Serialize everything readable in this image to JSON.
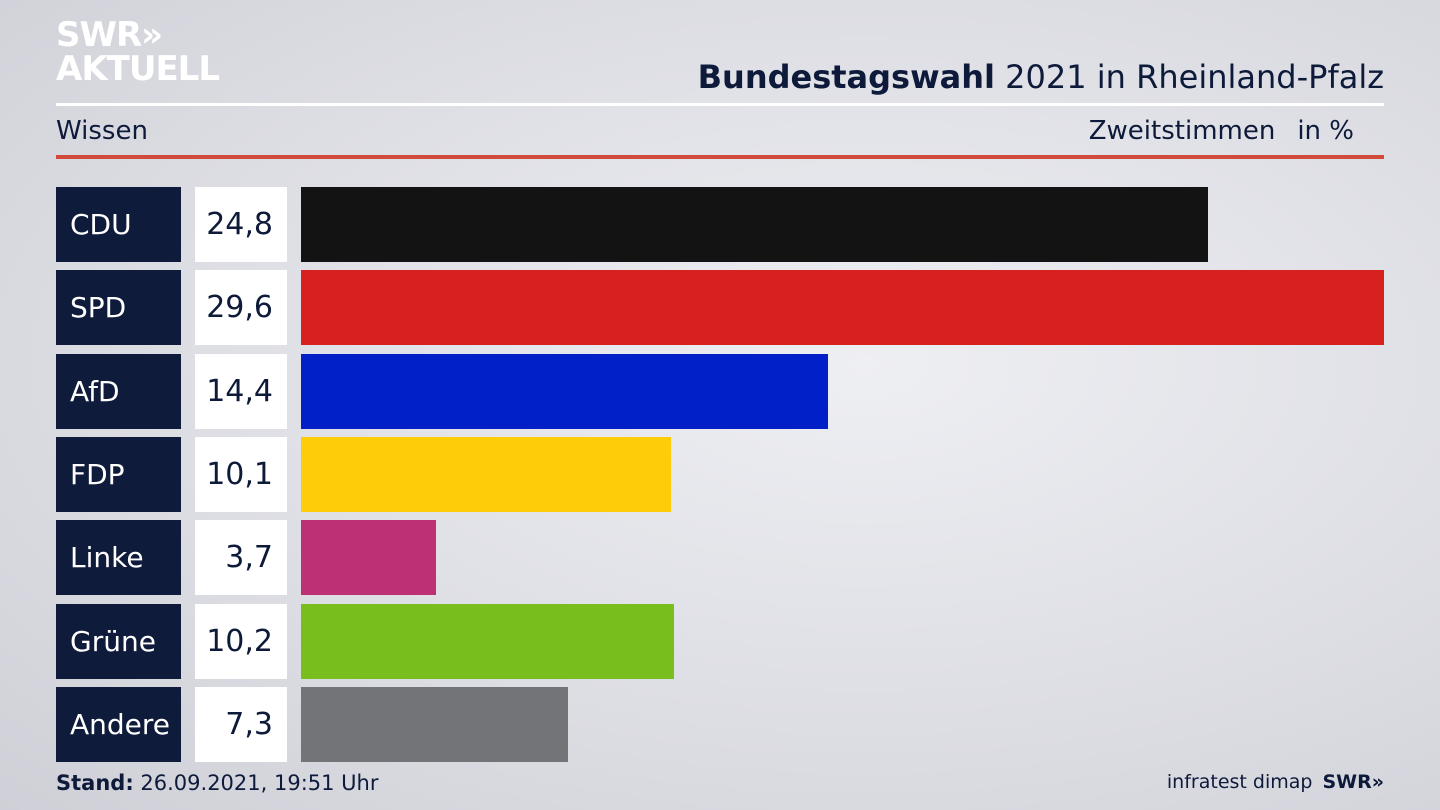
{
  "logo": {
    "line1": "SWR»",
    "line2": "AKTUELL"
  },
  "header": {
    "title_bold": "Bundestagswahl",
    "title_rest": " 2021 in Rheinland-Pfalz",
    "subtitle_left": "Wissen",
    "subtitle_right": "Zweitstimmen",
    "unit": "in %"
  },
  "footer": {
    "stand_label": "Stand:",
    "stand_value": " 26.09.2021, 19:51 Uhr",
    "source": "infratest dimap",
    "brand": "SWR»"
  },
  "chart_data": {
    "type": "bar",
    "orientation": "horizontal",
    "categories": [
      "CDU",
      "SPD",
      "AfD",
      "FDP",
      "Linke",
      "Grüne",
      "Andere"
    ],
    "values": [
      24.8,
      29.6,
      14.4,
      10.1,
      3.7,
      10.2,
      7.3
    ],
    "value_labels": [
      "24,8",
      "29,6",
      "14,4",
      "10,1",
      "3,7",
      "10,2",
      "7,3"
    ],
    "colors": [
      "#131313",
      "#d8201f",
      "#0220c8",
      "#fecd0a",
      "#be3075",
      "#78be1d",
      "#737477"
    ],
    "xlim": [
      0,
      29.6
    ]
  }
}
